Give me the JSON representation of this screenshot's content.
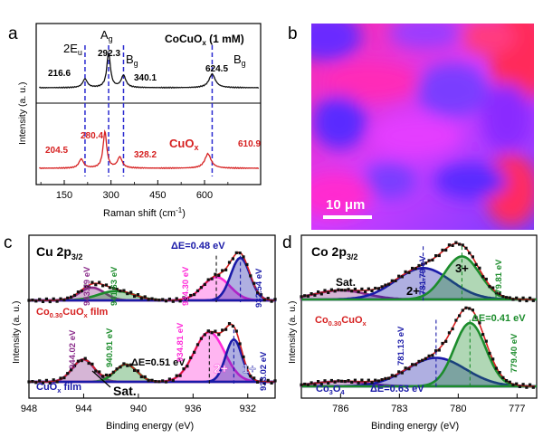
{
  "panel_labels": {
    "a": "a",
    "b": "b",
    "c": "c",
    "d": "d"
  },
  "colors": {
    "black": "#111111",
    "red": "#d62020",
    "blue": "#1a1aa8",
    "green": "#1c8c2c",
    "magenta": "#ff2ad8",
    "purple": "#8a2b8a",
    "dashblue": "#2a2ad0"
  },
  "chart_data": [
    {
      "id": "a",
      "type": "line",
      "title": "",
      "xlabel_main": "Raman shift (cm",
      "xlabel_sup": "-1",
      "xlabel_end": ")",
      "ylabel": "Intensity (a. u.)",
      "xlim": [
        60,
        780
      ],
      "xticks": [
        "150",
        "300",
        "450",
        "600"
      ],
      "xtick_values": [
        150,
        300,
        450,
        600
      ],
      "vlines": [
        216.6,
        292.3,
        340.1,
        624.5
      ],
      "top_label": {
        "main": "CoCuO",
        "sub": "x",
        "end": " (1 mM)"
      },
      "bottom_label": {
        "main": "CuO",
        "sub": "x"
      },
      "modes": [
        {
          "main": "2E",
          "sub": "u",
          "x": 216.6
        },
        {
          "main": "A",
          "sub": "g",
          "x": 292.3
        },
        {
          "main": "B",
          "sub": "g",
          "x": 340.1
        },
        {
          "main": "B",
          "sub": "g",
          "x": 624.5
        }
      ],
      "series": [
        {
          "name": "CoCuOx (1 mM)",
          "color": "black",
          "peaks": [
            [
              216.6,
              0.25,
              9
            ],
            [
              292.3,
              1.0,
              7
            ],
            [
              340.1,
              0.35,
              9
            ],
            [
              624.5,
              0.4,
              12
            ]
          ]
        },
        {
          "name": "CuOx",
          "color": "red",
          "peaks": [
            [
              204.5,
              0.25,
              9
            ],
            [
              280.4,
              1.0,
              7
            ],
            [
              328.2,
              0.3,
              9
            ],
            [
              610.9,
              0.4,
              12
            ]
          ]
        }
      ],
      "peak_labels_top": [
        "216.6",
        "292.3",
        "340.1",
        "624.5"
      ],
      "peak_labels_bottom": [
        "204.5",
        "280.4",
        "328.2",
        "610.9"
      ]
    },
    {
      "id": "b",
      "type": "heatmap",
      "scalebar": "10 μm"
    },
    {
      "id": "c",
      "type": "scatter",
      "title": {
        "main": "Cu 2p",
        "sub": "3/2"
      },
      "xlabel": "Binding energy (eV)",
      "ylabel": "Intensity (a. u.)",
      "xlim": [
        948,
        930
      ],
      "xticks": [
        "948",
        "944",
        "940",
        "936",
        "932"
      ],
      "xtick_values": [
        948,
        944,
        940,
        936,
        932
      ],
      "upper_sample": {
        "main": "Co",
        "sub1": "0.30",
        "mid": "CuO",
        "sub2": "x",
        "end": " film"
      },
      "lower_sample": {
        "main": "CuO",
        "sub": "x",
        "end": " film"
      },
      "delta_upper": "ΔE=0.48 eV",
      "delta_lower": "ΔE=0.51 eV",
      "state_2plus": "2+",
      "state_1plus": "1+",
      "sat": "Sat.",
      "energy_labels_upper": [
        "943.39 eV",
        "941.63 eV",
        "934.30 eV",
        "932.54 eV"
      ],
      "energy_labels_lower": [
        "944.02 eV",
        "940.91 eV",
        "934.81 eV",
        "933.02 eV"
      ],
      "upper_components": [
        {
          "center": 943.39,
          "amp": 0.3,
          "sigma": 0.9,
          "color": "purple"
        },
        {
          "center": 941.63,
          "amp": 0.22,
          "sigma": 1.3,
          "color": "green"
        },
        {
          "center": 934.3,
          "amp": 0.55,
          "sigma": 1.0,
          "color": "magenta"
        },
        {
          "center": 932.54,
          "amp": 1.0,
          "sigma": 0.7,
          "color": "blue"
        }
      ],
      "lower_components": [
        {
          "center": 944.02,
          "amp": 0.45,
          "sigma": 0.8,
          "color": "purple"
        },
        {
          "center": 940.91,
          "amp": 0.35,
          "sigma": 0.8,
          "color": "green"
        },
        {
          "center": 934.81,
          "amp": 1.0,
          "sigma": 1.1,
          "color": "magenta"
        },
        {
          "center": 933.02,
          "amp": 0.85,
          "sigma": 0.6,
          "color": "blue"
        }
      ]
    },
    {
      "id": "d",
      "type": "scatter",
      "title": {
        "main": "Co 2p",
        "sub": "3/2"
      },
      "xlabel": "Binding energy (eV)",
      "ylabel": "Intensity (a. u.)",
      "xlim": [
        788,
        776
      ],
      "xticks": [
        "786",
        "783",
        "780",
        "777"
      ],
      "xtick_values": [
        786,
        783,
        780,
        777
      ],
      "upper_sample": {
        "main": "Co",
        "sub1": "0.30",
        "mid": "CuO",
        "sub2": "x"
      },
      "lower_sample": {
        "main": "Co",
        "sub1": "3",
        "mid": "O",
        "sub2": "4"
      },
      "delta_upper": "ΔE=0.41 eV",
      "delta_lower": "ΔE=0.63 eV",
      "state_2plus": "2+",
      "state_3plus": "3+",
      "sat": "Sat.",
      "energy_labels_upper": [
        "781.79 eV",
        "779.81 eV"
      ],
      "energy_labels_lower": [
        "781.13 eV",
        "779.40 eV"
      ],
      "upper_components": [
        {
          "center": 786.0,
          "amp": 0.18,
          "sigma": 1.3,
          "color": "purple"
        },
        {
          "center": 781.79,
          "amp": 0.62,
          "sigma": 1.4,
          "color": "blue"
        },
        {
          "center": 779.81,
          "amp": 0.85,
          "sigma": 0.9,
          "color": "green"
        }
      ],
      "lower_components": [
        {
          "center": 786.0,
          "amp": 0.08,
          "sigma": 1.3,
          "color": "purple"
        },
        {
          "center": 781.13,
          "amp": 0.45,
          "sigma": 1.5,
          "color": "blue"
        },
        {
          "center": 779.4,
          "amp": 1.0,
          "sigma": 0.8,
          "color": "green"
        }
      ]
    }
  ]
}
